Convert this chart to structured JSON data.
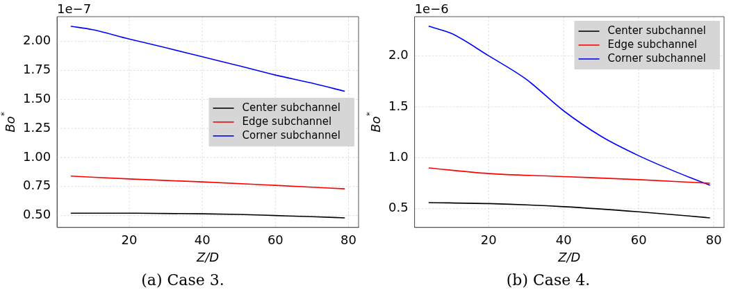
{
  "chart_data": [
    {
      "type": "line",
      "title": "(a) Case 3.",
      "xlabel": "Z/D",
      "ylabel": "Bo$^{*}$",
      "annotations": [
        "1e−7"
      ],
      "xlim": [
        0.25,
        82.75
      ],
      "xticks": [
        20,
        40,
        60,
        80
      ],
      "ylim": [
        0.3975,
        2.2125
      ],
      "yticks": [
        {
          "value": 0.5,
          "label": "0.50"
        },
        {
          "value": 0.75,
          "label": "0.75"
        },
        {
          "value": 1.0,
          "label": "1.00"
        },
        {
          "value": 1.25,
          "label": "1.25"
        },
        {
          "value": 1.5,
          "label": "1.50"
        },
        {
          "value": 1.75,
          "label": "1.75"
        },
        {
          "value": 2.0,
          "label": "2.00"
        }
      ],
      "grid": true,
      "legend": "right",
      "series": [
        {
          "name": "Center subchannel",
          "color": "#000000",
          "x": [
            4,
            20,
            40,
            50,
            60,
            70,
            79
          ],
          "values": [
            0.52,
            0.52,
            0.515,
            0.51,
            0.5,
            0.49,
            0.48
          ]
        },
        {
          "name": "Edge subchannel",
          "color": "#ff0000",
          "x": [
            4,
            20,
            40,
            60,
            79
          ],
          "values": [
            0.84,
            0.815,
            0.79,
            0.76,
            0.73
          ]
        },
        {
          "name": "Corner subchannel",
          "color": "#0000ff",
          "x": [
            4,
            10,
            20,
            30,
            40,
            50,
            60,
            70,
            79
          ],
          "values": [
            2.13,
            2.1,
            2.02,
            1.945,
            1.867,
            1.79,
            1.71,
            1.64,
            1.57
          ]
        }
      ]
    },
    {
      "type": "line",
      "title": "(b) Case 4.",
      "xlabel": "Z/D",
      "ylabel": "Bo$^{*}$",
      "annotations": [
        "1e−6"
      ],
      "xlim": [
        0.25,
        82.75
      ],
      "xticks": [
        20,
        40,
        60,
        80
      ],
      "ylim": [
        0.316,
        2.384
      ],
      "yticks": [
        {
          "value": 0.5,
          "label": "0.5"
        },
        {
          "value": 1.0,
          "label": "1.0"
        },
        {
          "value": 1.5,
          "label": "1.5"
        },
        {
          "value": 2.0,
          "label": "2.0"
        }
      ],
      "grid": true,
      "legend": "top right",
      "series": [
        {
          "name": "Center subchannel",
          "color": "#000000",
          "x": [
            4,
            20,
            40,
            60,
            79
          ],
          "values": [
            0.56,
            0.55,
            0.52,
            0.47,
            0.41
          ]
        },
        {
          "name": "Edge subchannel",
          "color": "#ff0000",
          "x": [
            4,
            20,
            40,
            60,
            79
          ],
          "values": [
            0.9,
            0.845,
            0.815,
            0.785,
            0.75
          ]
        },
        {
          "name": "Corner subchannel",
          "color": "#0000ff",
          "x": [
            4,
            10,
            20,
            30,
            40,
            50,
            60,
            70,
            79
          ],
          "values": [
            2.29,
            2.22,
            2.0,
            1.77,
            1.46,
            1.21,
            1.02,
            0.86,
            0.73
          ]
        }
      ]
    }
  ]
}
